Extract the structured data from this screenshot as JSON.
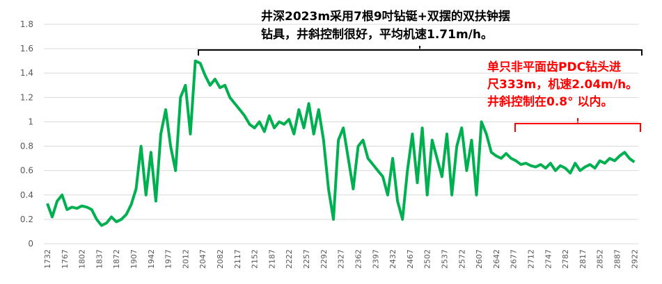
{
  "chart_data": {
    "type": "line",
    "annotations": [
      {
        "lines": [
          "井深2023m采用7根9吋钻铤+双摆的双扶钟摆",
          "钻具，井斜控制很好，平均机速1.71m/h。"
        ],
        "color": "#000000"
      },
      {
        "lines": [
          "单只非平面齿PDC钻头进",
          "尺333m，机速2.04m/h。",
          "井斜控制在0.8° 以内。"
        ],
        "color": "#ff0000"
      }
    ],
    "x": [
      1732,
      1742,
      1752,
      1762,
      1772,
      1782,
      1792,
      1802,
      1812,
      1822,
      1832,
      1842,
      1852,
      1862,
      1872,
      1882,
      1892,
      1902,
      1912,
      1922,
      1932,
      1942,
      1952,
      1962,
      1972,
      1982,
      1992,
      2002,
      2012,
      2022,
      2032,
      2042,
      2052,
      2062,
      2072,
      2082,
      2092,
      2102,
      2112,
      2122,
      2132,
      2142,
      2152,
      2162,
      2172,
      2182,
      2192,
      2202,
      2212,
      2222,
      2232,
      2242,
      2252,
      2262,
      2272,
      2282,
      2292,
      2302,
      2312,
      2322,
      2332,
      2342,
      2352,
      2362,
      2372,
      2382,
      2392,
      2402,
      2412,
      2422,
      2432,
      2442,
      2452,
      2462,
      2472,
      2482,
      2492,
      2502,
      2512,
      2522,
      2532,
      2542,
      2552,
      2562,
      2572,
      2582,
      2592,
      2602,
      2612,
      2622,
      2632,
      2642,
      2652,
      2662,
      2672,
      2682,
      2692,
      2702,
      2712,
      2722,
      2732,
      2742,
      2752,
      2762,
      2772,
      2782,
      2792,
      2802,
      2812,
      2822,
      2832,
      2842,
      2852,
      2862,
      2872,
      2882,
      2892,
      2902,
      2912,
      2922
    ],
    "series": [
      {
        "color": "#00b050",
        "values": [
          0.33,
          0.22,
          0.35,
          0.4,
          0.28,
          0.3,
          0.29,
          0.31,
          0.3,
          0.28,
          0.2,
          0.15,
          0.17,
          0.22,
          0.18,
          0.2,
          0.24,
          0.32,
          0.45,
          0.8,
          0.4,
          0.75,
          0.35,
          0.9,
          1.1,
          0.8,
          0.6,
          1.2,
          1.3,
          0.9,
          1.5,
          1.48,
          1.38,
          1.3,
          1.35,
          1.28,
          1.3,
          1.2,
          1.15,
          1.1,
          1.05,
          0.98,
          0.95,
          1.0,
          0.92,
          1.05,
          0.95,
          1.0,
          0.98,
          1.02,
          0.9,
          1.1,
          0.95,
          1.15,
          0.9,
          1.1,
          0.85,
          0.45,
          0.2,
          0.85,
          0.95,
          0.7,
          0.45,
          0.8,
          0.85,
          0.7,
          0.65,
          0.6,
          0.55,
          0.4,
          0.7,
          0.35,
          0.2,
          0.6,
          0.9,
          0.5,
          0.95,
          0.4,
          0.85,
          0.7,
          0.55,
          0.9,
          0.4,
          0.8,
          0.95,
          0.6,
          0.85,
          0.4,
          1.0,
          0.9,
          0.75,
          0.72,
          0.7,
          0.74,
          0.7,
          0.68,
          0.65,
          0.66,
          0.64,
          0.63,
          0.65,
          0.62,
          0.66,
          0.6,
          0.64,
          0.62,
          0.58,
          0.66,
          0.6,
          0.63,
          0.65,
          0.62,
          0.68,
          0.66,
          0.7,
          0.68,
          0.72,
          0.75,
          0.7,
          0.67
        ]
      }
    ],
    "xlim": [
      1725,
      2930
    ],
    "xticks": [
      1732,
      1767,
      1802,
      1837,
      1872,
      1907,
      1942,
      1977,
      2012,
      2047,
      2082,
      2117,
      2152,
      2187,
      2222,
      2257,
      2292,
      2327,
      2362,
      2397,
      2432,
      2467,
      2502,
      2537,
      2572,
      2607,
      2642,
      2677,
      2712,
      2747,
      2782,
      2817,
      2852,
      2887,
      2922
    ],
    "ylim": [
      0,
      1.8
    ],
    "yticks": [
      0,
      0.2,
      0.4,
      0.6,
      0.8,
      1,
      1.2,
      1.4,
      1.6,
      1.8
    ],
    "grid": true
  }
}
